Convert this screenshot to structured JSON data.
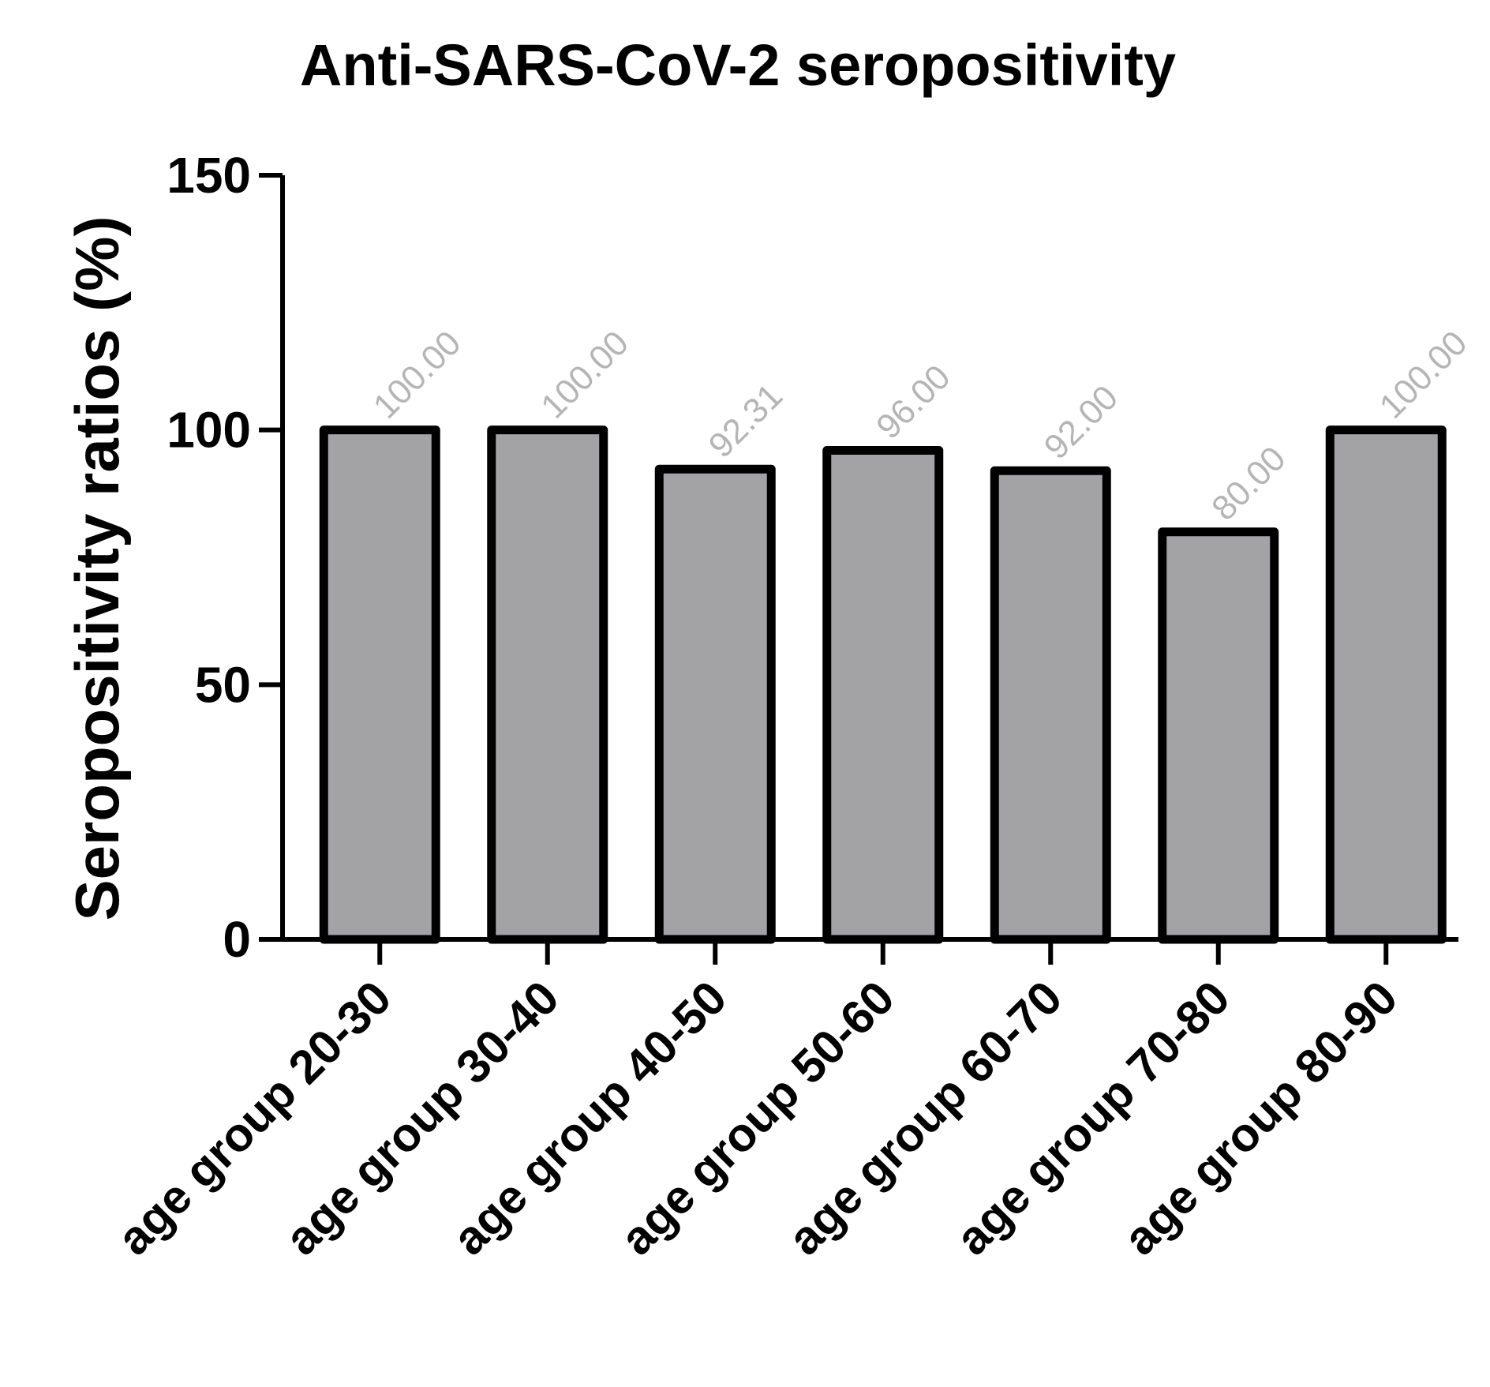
{
  "chart_data": {
    "type": "bar",
    "title": "Anti-SARS-CoV-2 seropositivity",
    "ylabel": "Seropositivity ratios (%)",
    "xlabel": "",
    "ylim": [
      0,
      150
    ],
    "yticks": [
      0,
      50,
      100,
      150
    ],
    "categories": [
      "age group 20-30",
      "age group 30-40",
      "age group 40-50",
      "age group 50-60",
      "age group 60-70",
      "age group 70-80",
      "age group 80-90"
    ],
    "values": [
      100.0,
      100.0,
      92.31,
      96.0,
      92.0,
      80.0,
      100.0
    ],
    "value_labels": [
      "100.00",
      "100.00",
      "92.31",
      "96.00",
      "92.00",
      "80.00",
      "100.00"
    ],
    "grid": false,
    "legend": "none",
    "colors": {
      "bar_fill": "#a3a3a6",
      "bar_stroke": "#000000",
      "value_label": "#b5b5b5",
      "axis": "#000000"
    }
  }
}
